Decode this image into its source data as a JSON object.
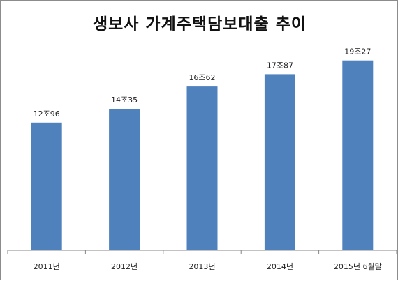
{
  "chart_data": {
    "type": "bar",
    "title": "생보사 가계주택담보대출 추이",
    "categories": [
      "2011년",
      "2012년",
      "2013년",
      "2014년",
      "2015년 6월말"
    ],
    "values": [
      12.96,
      14.35,
      16.62,
      17.87,
      19.27
    ],
    "data_labels": [
      "12조96",
      "14조35",
      "16조62",
      "17조87",
      "19조27"
    ],
    "xlabel": "",
    "ylabel": "",
    "ylim": [
      0,
      22.5
    ],
    "grid": false,
    "legend": "none",
    "bar_color": "#4f81bd"
  }
}
